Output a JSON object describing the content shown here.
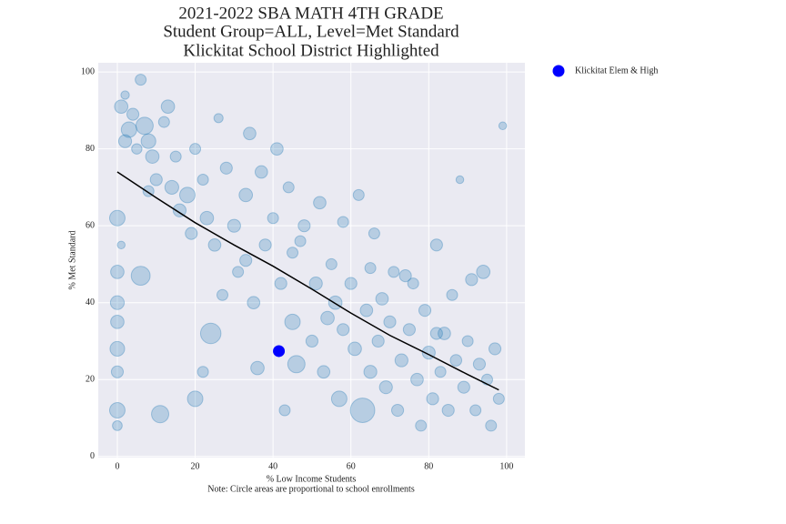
{
  "chart_data": {
    "type": "scatter",
    "title": "2021-2022 SBA MATH 4TH GRADE",
    "subtitle": "Student Group=ALL, Level=Met Standard",
    "subtitle2": "Klickitat School District Highlighted",
    "xlabel": "% Low Income Students",
    "note": "Note: Circle areas are proportional to school enrollments",
    "ylabel": "% Met Standard",
    "xlim": [
      -4.9,
      104.7
    ],
    "ylim": [
      -0.3,
      102.4
    ],
    "xticks": [
      0,
      20,
      40,
      60,
      80,
      100
    ],
    "yticks": [
      0,
      20,
      40,
      60,
      80,
      100
    ],
    "grid": true,
    "legend": "outside-right",
    "series": [
      {
        "color": "#1f77b4",
        "x": [
          1,
          2,
          3,
          4,
          5,
          6,
          7,
          8,
          2,
          9,
          0,
          0,
          0,
          0,
          0,
          0,
          0,
          0,
          1,
          6,
          11,
          10,
          12,
          14,
          15,
          16,
          18,
          20,
          19,
          22,
          23,
          25,
          24,
          22,
          20,
          27,
          28,
          30,
          31,
          33,
          34,
          35,
          36,
          38,
          40,
          41,
          42,
          43,
          44,
          45,
          46,
          47,
          48,
          50,
          51,
          52,
          53,
          55,
          56,
          57,
          58,
          60,
          61,
          62,
          63,
          64,
          65,
          66,
          67,
          68,
          69,
          70,
          71,
          72,
          73,
          75,
          76,
          77,
          78,
          79,
          80,
          81,
          82,
          83,
          84,
          85,
          86,
          87,
          88,
          89,
          90,
          91,
          92,
          93,
          94,
          95,
          96,
          97,
          99,
          98,
          65,
          58,
          37,
          26,
          13,
          8,
          33,
          45,
          54,
          74,
          82
        ],
        "values": [
          91,
          94,
          85,
          89,
          80,
          98,
          86,
          82,
          82,
          78,
          62,
          48,
          40,
          35,
          28,
          22,
          12,
          8,
          55,
          47,
          11,
          72,
          87,
          70,
          78,
          64,
          68,
          80,
          58,
          72,
          62,
          55,
          32,
          22,
          15,
          42,
          75,
          60,
          48,
          68,
          84,
          40,
          23,
          55,
          62,
          80,
          45,
          12,
          70,
          35,
          24,
          56,
          60,
          30,
          45,
          66,
          22,
          50,
          40,
          15,
          33,
          45,
          28,
          68,
          12,
          38,
          22,
          58,
          30,
          41,
          18,
          35,
          48,
          12,
          25,
          33,
          45,
          20,
          8,
          38,
          27,
          15,
          55,
          22,
          32,
          12,
          42,
          25,
          72,
          18,
          30,
          46,
          12,
          24,
          48,
          20,
          8,
          28,
          86,
          15,
          49,
          61,
          74,
          88,
          91,
          69,
          51,
          53,
          36,
          47,
          32
        ],
        "sizes": [
          150,
          60,
          200,
          120,
          90,
          100,
          250,
          180,
          140,
          150,
          200,
          150,
          160,
          150,
          180,
          120,
          200,
          80,
          50,
          300,
          250,
          120,
          100,
          160,
          100,
          140,
          200,
          100,
          120,
          100,
          150,
          130,
          350,
          100,
          200,
          100,
          120,
          140,
          100,
          150,
          130,
          130,
          150,
          120,
          100,
          130,
          120,
          100,
          100,
          200,
          250,
          100,
          120,
          120,
          140,
          130,
          130,
          100,
          150,
          200,
          120,
          120,
          150,
          100,
          500,
          130,
          140,
          100,
          120,
          130,
          140,
          120,
          100,
          120,
          140,
          120,
          100,
          130,
          100,
          120,
          140,
          120,
          120,
          100,
          130,
          120,
          100,
          110,
          50,
          120,
          100,
          120,
          100,
          120,
          150,
          100,
          100,
          120,
          50,
          100,
          100,
          100,
          130,
          70,
          150,
          100,
          120,
          100,
          150,
          120,
          120
        ]
      },
      {
        "name": "Klickitat Elem & High",
        "color": "#0000ff",
        "x": [
          41.5
        ],
        "values": [
          27.4
        ]
      },
      {
        "type": "line",
        "color": "#000000",
        "x": [
          0,
          10,
          20,
          30,
          40,
          50,
          60,
          70,
          80,
          90,
          98
        ],
        "values": [
          74,
          67.3,
          60.8,
          55,
          49.5,
          43.5,
          37.3,
          31.5,
          26.5,
          21.3,
          17.3
        ]
      }
    ]
  }
}
